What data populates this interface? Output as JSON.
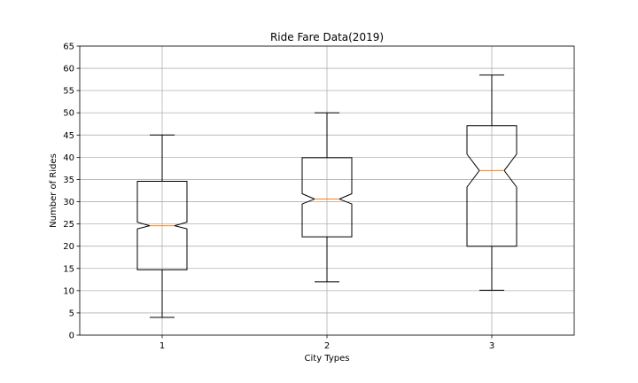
{
  "chart_data": {
    "type": "boxplot",
    "title": "Ride Fare Data(2019)",
    "xlabel": "City Types",
    "ylabel": "Number of Rides",
    "categories": [
      "1",
      "2",
      "3"
    ],
    "ylim": [
      0,
      65
    ],
    "yticks": [
      0,
      5,
      10,
      15,
      20,
      25,
      30,
      35,
      40,
      45,
      50,
      55,
      60,
      65
    ],
    "ytick_labels": [
      "0",
      "5",
      "10",
      "15",
      "20",
      "25",
      "30",
      "35",
      "40",
      "45",
      "50",
      "55",
      "60",
      "65"
    ],
    "grid": true,
    "notched": true,
    "boxes": [
      {
        "whisker_low": 4,
        "q1": 14.7,
        "notch_low": 23.9,
        "median": 24.6,
        "notch_high": 25.4,
        "q3": 34.6,
        "whisker_high": 45
      },
      {
        "whisker_low": 12,
        "q1": 22.1,
        "notch_low": 29.5,
        "median": 30.6,
        "notch_high": 31.8,
        "q3": 39.9,
        "whisker_high": 50
      },
      {
        "whisker_low": 10.1,
        "q1": 20,
        "notch_low": 33.3,
        "median": 37,
        "notch_high": 40.7,
        "q3": 47.1,
        "whisker_high": 58.5
      }
    ],
    "colors": {
      "box": "#000000",
      "median": "#ff7f0e",
      "grid": "#b0b0b0",
      "background": "#ffffff"
    }
  }
}
